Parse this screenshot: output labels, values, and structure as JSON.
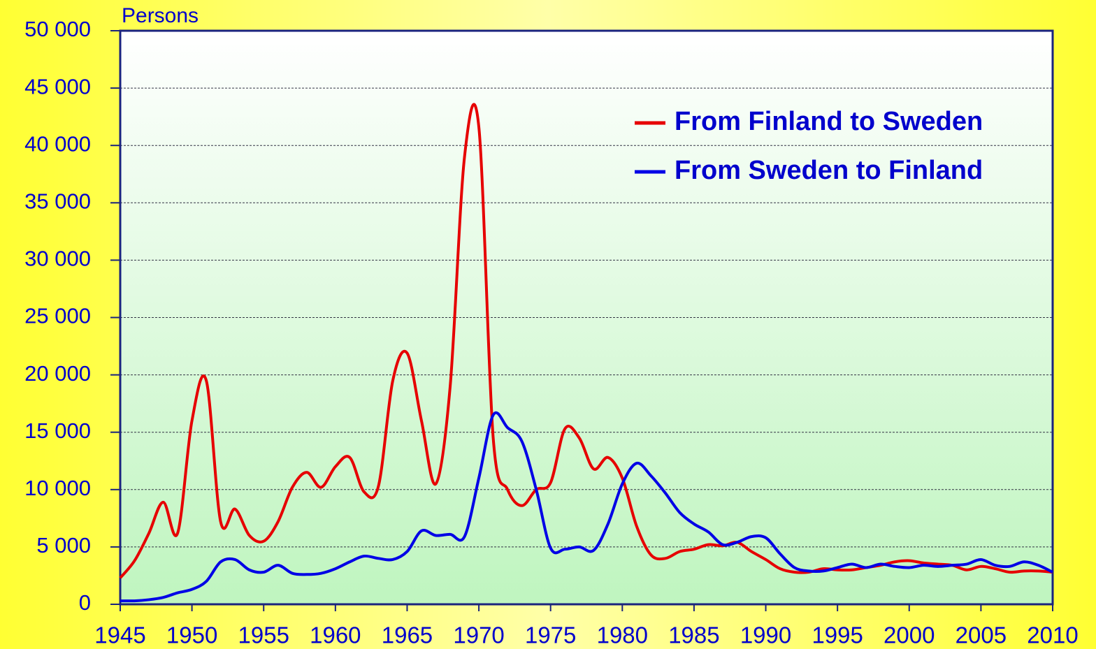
{
  "chart_data": {
    "type": "line",
    "y_axis_label": "Persons",
    "x": [
      1945,
      1946,
      1947,
      1948,
      1949,
      1950,
      1951,
      1952,
      1953,
      1954,
      1955,
      1956,
      1957,
      1958,
      1959,
      1960,
      1961,
      1962,
      1963,
      1964,
      1965,
      1966,
      1967,
      1968,
      1969,
      1970,
      1971,
      1972,
      1973,
      1974,
      1975,
      1976,
      1977,
      1978,
      1979,
      1980,
      1981,
      1982,
      1983,
      1984,
      1985,
      1986,
      1987,
      1988,
      1989,
      1990,
      1991,
      1992,
      1993,
      1994,
      1995,
      1996,
      1997,
      1998,
      1999,
      2000,
      2001,
      2002,
      2003,
      2004,
      2005,
      2006,
      2007,
      2008,
      2009,
      2010
    ],
    "series": [
      {
        "name": "From Finland to Sweden",
        "color": "#e60000",
        "values": [
          2300,
          3800,
          6200,
          8900,
          6200,
          16000,
          19500,
          7200,
          8300,
          6000,
          5500,
          7200,
          10200,
          11500,
          10200,
          12000,
          12800,
          9800,
          10300,
          19500,
          21900,
          16000,
          10500,
          19000,
          39000,
          41600,
          14500,
          10000,
          8600,
          10000,
          10600,
          15300,
          14500,
          11800,
          12800,
          11000,
          6800,
          4300,
          4000,
          4600,
          4800,
          5200,
          5100,
          5400,
          4600,
          3900,
          3100,
          2800,
          2800,
          3100,
          3000,
          3000,
          3200,
          3400,
          3700,
          3800,
          3600,
          3500,
          3400,
          3000,
          3300,
          3100,
          2800,
          2900,
          2900,
          2800
        ]
      },
      {
        "name": "From Sweden to Finland",
        "color": "#0000e6",
        "values": [
          300,
          300,
          400,
          600,
          1000,
          1300,
          2000,
          3700,
          3900,
          3000,
          2800,
          3400,
          2700,
          2600,
          2700,
          3100,
          3700,
          4200,
          4000,
          3900,
          4600,
          6400,
          6000,
          6100,
          5900,
          11000,
          16500,
          15400,
          14200,
          10000,
          4900,
          4800,
          5000,
          4700,
          7000,
          10500,
          12300,
          11200,
          9700,
          8000,
          7000,
          6300,
          5200,
          5400,
          5900,
          5800,
          4400,
          3200,
          2900,
          2900,
          3200,
          3500,
          3200,
          3500,
          3300,
          3200,
          3400,
          3300,
          3400,
          3500,
          3900,
          3400,
          3300,
          3700,
          3400,
          2800
        ]
      }
    ],
    "xlim": [
      1945,
      2010
    ],
    "xticks": [
      1945,
      1950,
      1955,
      1960,
      1965,
      1970,
      1975,
      1980,
      1985,
      1990,
      1995,
      2000,
      2005,
      2010
    ],
    "ylim": [
      0,
      50000
    ],
    "yticks": [
      0,
      {
        "value": 5000,
        "label": "5 000"
      },
      {
        "value": 10000,
        "label": "10 000"
      },
      {
        "value": 15000,
        "label": "15 000"
      },
      {
        "value": 20000,
        "label": "20 000"
      },
      {
        "value": 25000,
        "label": "25 000"
      },
      {
        "value": 30000,
        "label": "30 000"
      },
      {
        "value": 35000,
        "label": "35 000"
      },
      {
        "value": 40000,
        "label": "40 000"
      },
      {
        "value": 45000,
        "label": "45 000"
      },
      {
        "value": 50000,
        "label": "50 000"
      }
    ],
    "grid": true,
    "legend": "upper right"
  }
}
